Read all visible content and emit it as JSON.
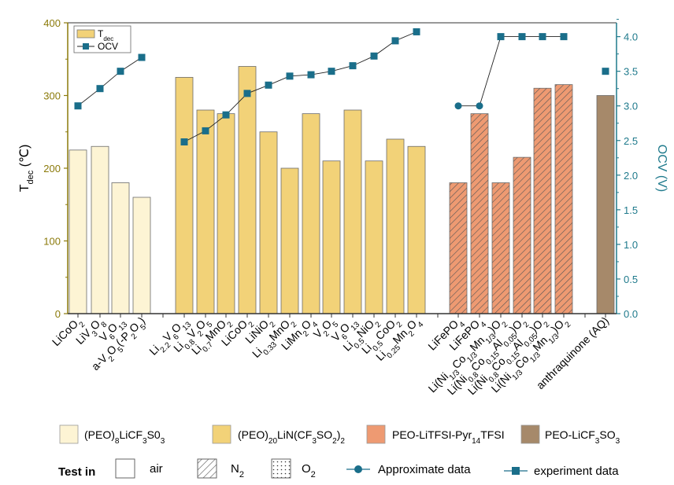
{
  "chart_data": {
    "type": "bar",
    "y_left": {
      "label": "T",
      "label_sub": "dec",
      "label_unit": "(℃)",
      "range": [
        0,
        400
      ],
      "ticks": [
        "0",
        "100",
        "200",
        "300",
        "400"
      ],
      "color": "#8B7A0A"
    },
    "y_right": {
      "label": "OCV (V)",
      "range": [
        0,
        4.2
      ],
      "ticks": [
        "0.0",
        "0.5",
        "1.0",
        "1.5",
        "2.0",
        "2.5",
        "3.0",
        "3.5",
        "4.0"
      ],
      "color": "#1F7A8C"
    },
    "colors": {
      "a": "#FDF4D4",
      "b": "#F2D278",
      "c": "#EE9A72",
      "d": "#A6896A",
      "line": "#1A6E8A"
    },
    "bars": [
      {
        "label": "LiCoO2",
        "value": 225,
        "ocv": 3.0,
        "g": "a",
        "pat": "air",
        "tick": [
          [
            "LiCoO",
            ""
          ],
          [
            "2",
            "sub"
          ]
        ]
      },
      {
        "label": "LiV3O8",
        "value": 230,
        "ocv": 3.25,
        "g": "a",
        "pat": "air",
        "tick": [
          [
            "LiV",
            ""
          ],
          [
            "3",
            "sub"
          ],
          [
            "O",
            ""
          ],
          [
            "8",
            "sub"
          ]
        ]
      },
      {
        "label": "V6O13",
        "value": 180,
        "ocv": 3.5,
        "g": "a",
        "pat": "air",
        "tick": [
          [
            "V",
            ""
          ],
          [
            "6",
            "sub"
          ],
          [
            "O",
            ""
          ],
          [
            "13",
            "sub"
          ]
        ]
      },
      {
        "label": "a-V2O5(-P2O5)",
        "value": 160,
        "ocv": 3.7,
        "g": "a",
        "pat": "air",
        "tick": [
          [
            "a-V",
            ""
          ],
          [
            "2",
            "sub"
          ],
          [
            "O",
            ""
          ],
          [
            "5",
            "sub"
          ],
          [
            "(-P",
            ""
          ],
          [
            "2",
            "sub"
          ],
          [
            "O",
            ""
          ],
          [
            "5",
            "sub"
          ],
          [
            ")",
            ""
          ]
        ]
      },
      {
        "label": "Li2.2V6O13",
        "value": 325,
        "ocv": 2.48,
        "g": "b",
        "pat": "air",
        "tick": [
          [
            "Li",
            ""
          ],
          [
            "2.2",
            "sub"
          ],
          [
            "V",
            ""
          ],
          [
            "6",
            "sub"
          ],
          [
            "O",
            ""
          ],
          [
            "13",
            "sub"
          ]
        ]
      },
      {
        "label": "Li0.8V2O5",
        "value": 280,
        "ocv": 2.64,
        "g": "b",
        "pat": "air",
        "tick": [
          [
            "Li",
            ""
          ],
          [
            "0.8",
            "sub"
          ],
          [
            "V",
            ""
          ],
          [
            "2",
            "sub"
          ],
          [
            "O",
            ""
          ],
          [
            "5",
            "sub"
          ]
        ]
      },
      {
        "label": "Li0.7MnO2",
        "value": 275,
        "ocv": 2.87,
        "g": "b",
        "pat": "air",
        "tick": [
          [
            "Li",
            ""
          ],
          [
            "0.7",
            "sub"
          ],
          [
            "MnO",
            ""
          ],
          [
            "2",
            "sub"
          ]
        ]
      },
      {
        "label": "LiCoO2",
        "value": 340,
        "ocv": 3.18,
        "g": "b",
        "pat": "air",
        "tick": [
          [
            "LiCoO",
            ""
          ],
          [
            "2",
            "sub"
          ]
        ]
      },
      {
        "label": "LiNiO2",
        "value": 250,
        "ocv": 3.3,
        "g": "b",
        "pat": "air",
        "tick": [
          [
            "LiNiO",
            ""
          ],
          [
            "2",
            "sub"
          ]
        ]
      },
      {
        "label": "Li0.33MnO2",
        "value": 200,
        "ocv": 3.43,
        "g": "b",
        "pat": "air",
        "tick": [
          [
            "Li",
            ""
          ],
          [
            "0.33",
            "sub"
          ],
          [
            "MnO",
            ""
          ],
          [
            "2",
            "sub"
          ]
        ]
      },
      {
        "label": "LiMn2O4",
        "value": 275,
        "ocv": 3.45,
        "g": "b",
        "pat": "air",
        "tick": [
          [
            "LiMn",
            ""
          ],
          [
            "2",
            "sub"
          ],
          [
            "O",
            ""
          ],
          [
            "4",
            "sub"
          ]
        ]
      },
      {
        "label": "V2O5",
        "value": 210,
        "ocv": 3.5,
        "g": "b",
        "pat": "air",
        "tick": [
          [
            "V",
            ""
          ],
          [
            "2",
            "sub"
          ],
          [
            "O",
            ""
          ],
          [
            "5",
            "sub"
          ]
        ]
      },
      {
        "label": "V6O13",
        "value": 280,
        "ocv": 3.58,
        "g": "b",
        "pat": "air",
        "tick": [
          [
            "V",
            ""
          ],
          [
            "6",
            "sub"
          ],
          [
            "O",
            ""
          ],
          [
            "13",
            "sub"
          ]
        ]
      },
      {
        "label": "Li0.5NiO2",
        "value": 210,
        "ocv": 3.72,
        "g": "b",
        "pat": "air",
        "tick": [
          [
            "Li",
            ""
          ],
          [
            "0.5",
            "sub"
          ],
          [
            "NiO",
            ""
          ],
          [
            "2",
            "sub"
          ]
        ]
      },
      {
        "label": "Li0.5CoO2",
        "value": 240,
        "ocv": 3.94,
        "g": "b",
        "pat": "air",
        "tick": [
          [
            "Li",
            ""
          ],
          [
            "0.5",
            "sub"
          ],
          [
            "CoO",
            ""
          ],
          [
            "2",
            "sub"
          ]
        ]
      },
      {
        "label": "Li0.25Mn2O4",
        "value": 230,
        "ocv": 4.07,
        "g": "b",
        "pat": "air",
        "tick": [
          [
            "Li",
            ""
          ],
          [
            "0.25",
            "sub"
          ],
          [
            "Mn",
            ""
          ],
          [
            "2",
            "sub"
          ],
          [
            "O",
            ""
          ],
          [
            "4",
            "sub"
          ]
        ]
      },
      {
        "label": "LiFePO4",
        "value": 180,
        "ocv": 3.0,
        "g": "c",
        "pat": "N2",
        "tick": [
          [
            "LiFePO",
            ""
          ],
          [
            "4",
            "sub"
          ]
        ]
      },
      {
        "label": "LiFePO4",
        "value": 275,
        "ocv": 3.0,
        "g": "c",
        "pat": "N2",
        "tick": [
          [
            "LiFePO",
            ""
          ],
          [
            "4",
            "sub"
          ]
        ]
      },
      {
        "label": "Li(Ni1/3Co1/3Mn1/3)O2",
        "value": 180,
        "ocv": 4.0,
        "g": "c",
        "pat": "N2",
        "tick": [
          [
            "Li(Ni",
            ""
          ],
          [
            "1/3",
            "sub"
          ],
          [
            "Co",
            ""
          ],
          [
            "1/3",
            "sub"
          ],
          [
            "Mn",
            ""
          ],
          [
            "1/3",
            "sub"
          ],
          [
            ")O",
            ""
          ],
          [
            "2",
            "sub"
          ]
        ]
      },
      {
        "label": "Li(Ni0.8Co0.15Al0.05)O2",
        "value": 215,
        "ocv": 4.0,
        "g": "c",
        "pat": "N2",
        "tick": [
          [
            "Li(Ni",
            ""
          ],
          [
            "0.8",
            "sub"
          ],
          [
            "Co",
            ""
          ],
          [
            "0.15",
            "sub"
          ],
          [
            "Al",
            ""
          ],
          [
            "0.05",
            "sub"
          ],
          [
            ")O",
            ""
          ],
          [
            "2",
            "sub"
          ]
        ]
      },
      {
        "label": "Li(Ni0.8Co0.15Al0.05)O2",
        "value": 310,
        "ocv": 4.0,
        "g": "c",
        "pat": "N2",
        "tick": [
          [
            "Li(Ni",
            ""
          ],
          [
            "0.8",
            "sub"
          ],
          [
            "Co",
            ""
          ],
          [
            "0.15",
            "sub"
          ],
          [
            "Al",
            ""
          ],
          [
            "0.05",
            "sub"
          ],
          [
            ")O",
            ""
          ],
          [
            "2",
            "sub"
          ]
        ]
      },
      {
        "label": "Li(Ni1/3Co1/3Mn1/3)O2",
        "value": 315,
        "ocv": 4.0,
        "g": "c",
        "pat": "N2",
        "tick": [
          [
            "Li(Ni",
            ""
          ],
          [
            "1/3",
            "sub"
          ],
          [
            "Co",
            ""
          ],
          [
            "1/3",
            "sub"
          ],
          [
            "Mn",
            ""
          ],
          [
            "1/3",
            "sub"
          ],
          [
            ")O",
            ""
          ],
          [
            "2",
            "sub"
          ]
        ]
      },
      {
        "label": "anthraquinone (AQ)",
        "value": 300,
        "ocv": 3.5,
        "g": "d",
        "pat": "air",
        "tick": [
          [
            "anthraquinone (AQ)",
            ""
          ]
        ]
      }
    ],
    "ocv_lines": [
      [
        0,
        1,
        2,
        3
      ],
      [
        4,
        5,
        6,
        7,
        8,
        9,
        10,
        11,
        12,
        13,
        14,
        15
      ],
      [
        16,
        17,
        18,
        19,
        20,
        21
      ],
      [
        22
      ]
    ],
    "inset_legend": [
      [
        "T",
        ""
      ],
      [
        "dec",
        "sub"
      ]
    ],
    "inset_legend_line": "OCV"
  },
  "legend": {
    "groups": [
      {
        "key": "a",
        "parts": [
          [
            "(PEO)",
            ""
          ],
          [
            "8",
            "sub"
          ],
          [
            "LiCF",
            ""
          ],
          [
            "3",
            "sub"
          ],
          [
            "S0",
            ""
          ],
          [
            "3",
            "sub"
          ]
        ]
      },
      {
        "key": "b",
        "parts": [
          [
            "(PEO)",
            ""
          ],
          [
            "20",
            "sub"
          ],
          [
            "LiN(CF",
            ""
          ],
          [
            "3",
            "sub"
          ],
          [
            "SO",
            ""
          ],
          [
            "2",
            "sub"
          ],
          [
            ")",
            ""
          ],
          [
            "2",
            "sub"
          ]
        ]
      },
      {
        "key": "c",
        "parts": [
          [
            "PEO-LiTFSI-Pyr",
            ""
          ],
          [
            "14",
            "sub"
          ],
          [
            "TFSI",
            ""
          ]
        ]
      },
      {
        "key": "d",
        "parts": [
          [
            "PEO-LiCF",
            ""
          ],
          [
            "3",
            "sub"
          ],
          [
            "SO",
            ""
          ],
          [
            "3",
            "sub"
          ]
        ]
      }
    ],
    "test_in": "Test in",
    "atmospheres": [
      {
        "pat": "air",
        "parts": [
          [
            "air",
            ""
          ]
        ]
      },
      {
        "pat": "N2",
        "parts": [
          [
            "N",
            ""
          ],
          [
            "2",
            "sub"
          ]
        ]
      },
      {
        "pat": "O2",
        "parts": [
          [
            "O",
            ""
          ],
          [
            "2",
            "sub"
          ]
        ]
      }
    ],
    "approx": "Approximate data",
    "experiment": "experiment data"
  }
}
